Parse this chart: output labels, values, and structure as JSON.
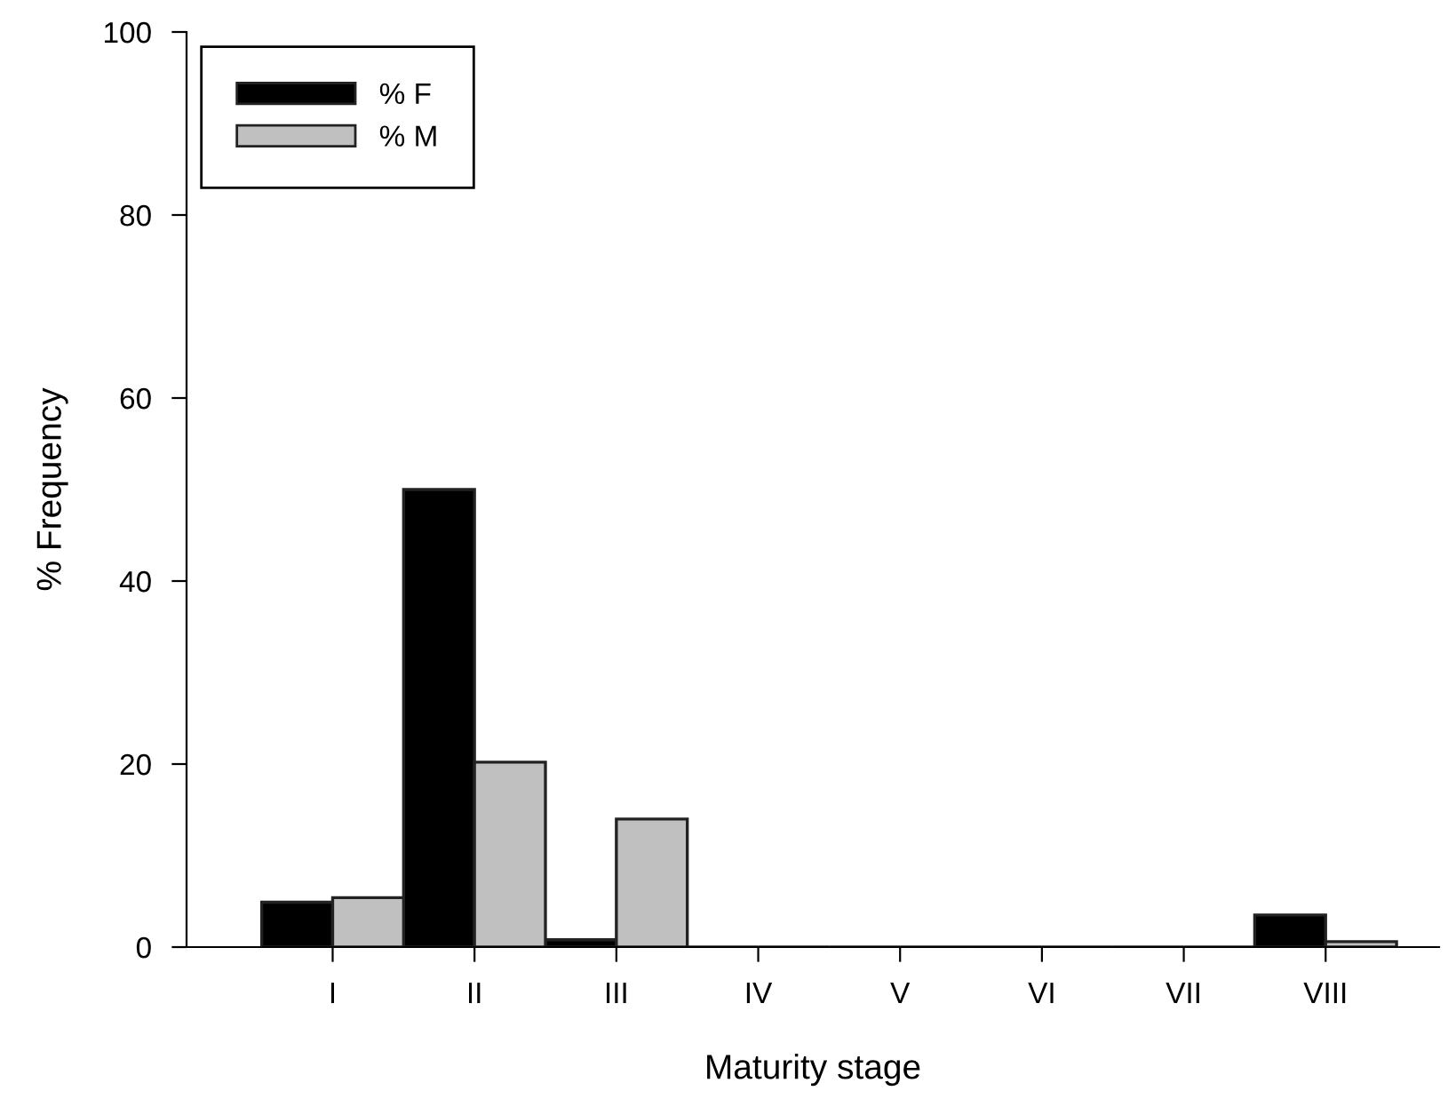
{
  "chart_data": {
    "type": "bar",
    "xlabel": "Maturity stage",
    "ylabel": "% Frequency",
    "categories": [
      "I",
      "II",
      "III",
      "IV",
      "V",
      "VI",
      "VII",
      "VIII"
    ],
    "series": [
      {
        "name": "% F",
        "color": "#000000",
        "values": [
          4.9,
          50,
          0.8,
          0,
          0,
          0,
          0,
          3.5
        ]
      },
      {
        "name": "% M",
        "color": "#c0c0c0",
        "values": [
          5.4,
          20.2,
          14,
          0,
          0,
          0,
          0,
          0.6
        ]
      }
    ],
    "ylim": [
      0,
      100
    ],
    "yticks": [
      0,
      20,
      40,
      60,
      80,
      100
    ],
    "grid": false,
    "legend": "top left"
  }
}
